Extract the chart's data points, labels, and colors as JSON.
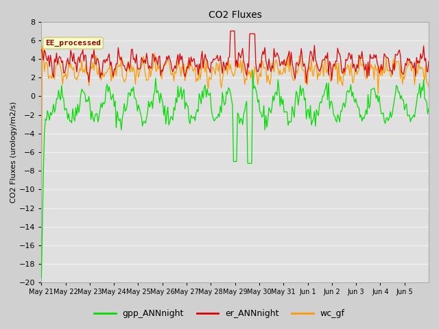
{
  "title": "CO2 Fluxes",
  "ylabel": "CO2 Fluxes (urology/m2/s)",
  "ylim": [
    -20,
    8
  ],
  "yticks": [
    -20,
    -18,
    -16,
    -14,
    -12,
    -10,
    -8,
    -6,
    -4,
    -2,
    0,
    2,
    4,
    6,
    8
  ],
  "annotation_text": "EE_processed",
  "annotation_color": "#8b0000",
  "annotation_bg": "#ffffcc",
  "annotation_edge": "#cccc88",
  "line_colors": {
    "gpp": "#00dd00",
    "er": "#dd0000",
    "wc": "#ff9900"
  },
  "legend_labels": [
    "gpp_ANNnight",
    "er_ANNnight",
    "wc_gf"
  ],
  "n_days": 16,
  "seed": 42,
  "fig_bg": "#d0d0d0",
  "axes_bg": "#e0e0e0",
  "grid_color": "#f0f0f0"
}
